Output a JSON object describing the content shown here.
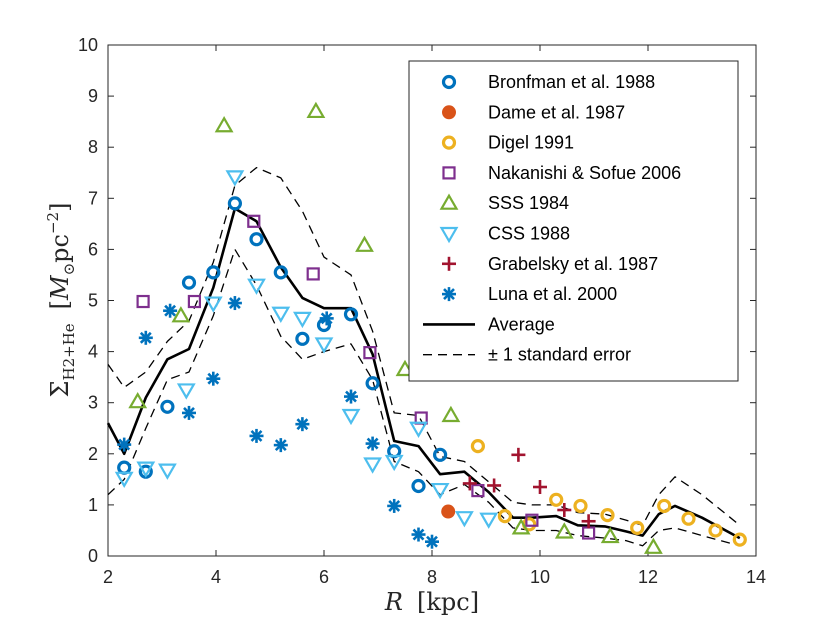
{
  "chart_data": {
    "type": "scatter",
    "title": "",
    "xlabel": "R",
    "xlabel_unit": "[kpc]",
    "ylabel_symbol": "Σ",
    "ylabel_subscript": "H2+He",
    "ylabel_unit_open": "[",
    "ylabel_unit_M": "M",
    "ylabel_unit_sun": "⊙",
    "ylabel_unit_pc": "pc",
    "ylabel_unit_exp": "−2",
    "ylabel_unit_close": "]",
    "xlim": [
      2,
      14
    ],
    "ylim": [
      0,
      10
    ],
    "xticks": [
      "2",
      "4",
      "6",
      "8",
      "10",
      "12",
      "14"
    ],
    "yticks": [
      "0",
      "1",
      "2",
      "3",
      "4",
      "5",
      "6",
      "7",
      "8",
      "9",
      "10"
    ],
    "legend_position": "top-right",
    "series": [
      {
        "name": "Bronfman et al. 1988",
        "marker": "circle",
        "color": "#0072BD",
        "x": [
          2.3,
          2.7,
          3.1,
          3.5,
          3.95,
          4.35,
          4.75,
          5.2,
          5.6,
          6.0,
          6.5,
          6.9,
          7.3,
          7.75,
          8.15
        ],
        "y": [
          1.73,
          1.65,
          2.92,
          5.35,
          5.55,
          6.9,
          6.2,
          5.55,
          4.25,
          4.52,
          4.73,
          3.38,
          2.05,
          1.37,
          1.98
        ]
      },
      {
        "name": "Dame et al. 1987",
        "marker": "filled-circle",
        "color": "#D95319",
        "x": [
          8.3
        ],
        "y": [
          0.87
        ]
      },
      {
        "name": "Digel 1991",
        "marker": "circle",
        "color": "#EDB120",
        "x": [
          8.85,
          9.35,
          9.8,
          10.3,
          10.75,
          11.25,
          11.8,
          12.3,
          12.75,
          13.25,
          13.7
        ],
        "y": [
          2.15,
          0.78,
          0.62,
          1.1,
          0.98,
          0.8,
          0.55,
          0.98,
          0.73,
          0.5,
          0.32
        ]
      },
      {
        "name": "Nakanishi & Sofue 2006",
        "marker": "square",
        "color": "#7E2F8E",
        "x": [
          2.65,
          3.6,
          4.7,
          5.8,
          6.85,
          7.8,
          8.85,
          9.85,
          10.9
        ],
        "y": [
          4.98,
          4.98,
          6.55,
          5.52,
          3.98,
          2.7,
          1.28,
          0.7,
          0.45
        ]
      },
      {
        "name": "SSS 1984",
        "marker": "triangle-up",
        "color": "#77AC30",
        "x": [
          2.55,
          3.35,
          4.15,
          5.85,
          6.75,
          7.5,
          8.35,
          9.65,
          10.45,
          11.3,
          12.1
        ],
        "y": [
          3.02,
          4.7,
          8.42,
          8.7,
          6.08,
          3.65,
          2.75,
          0.55,
          0.47,
          0.38,
          0.17
        ]
      },
      {
        "name": "CSS 1988",
        "marker": "triangle-down",
        "color": "#4DBEEE",
        "x": [
          2.3,
          2.7,
          3.1,
          3.45,
          3.95,
          4.35,
          4.75,
          5.2,
          5.6,
          6.0,
          6.5,
          6.9,
          7.3,
          7.75,
          8.15,
          8.6,
          9.05
        ],
        "y": [
          1.52,
          1.72,
          1.68,
          3.25,
          4.95,
          7.42,
          5.3,
          4.75,
          4.65,
          4.15,
          2.75,
          1.8,
          1.85,
          2.5,
          1.3,
          0.75,
          0.72
        ]
      },
      {
        "name": "Grabelsky et al. 1987",
        "marker": "plus",
        "color": "#A2142F",
        "x": [
          8.7,
          9.15,
          9.6,
          10.0,
          10.45,
          10.9
        ],
        "y": [
          1.42,
          1.38,
          1.98,
          1.35,
          0.9,
          0.68
        ]
      },
      {
        "name": "Luna et al. 2000",
        "marker": "asterisk",
        "color": "#0072BD",
        "x": [
          2.3,
          2.7,
          3.15,
          3.5,
          3.95,
          4.35,
          4.75,
          5.2,
          5.6,
          6.05,
          6.5,
          6.9,
          7.3,
          7.75,
          8.0
        ],
        "y": [
          2.18,
          4.27,
          4.8,
          2.8,
          3.47,
          4.95,
          2.35,
          2.17,
          2.58,
          4.65,
          3.12,
          2.2,
          0.98,
          0.42,
          0.28
        ]
      }
    ],
    "lines": [
      {
        "name": "Average",
        "style": "solid",
        "color": "#000000",
        "x": [
          2.0,
          2.3,
          2.7,
          3.1,
          3.5,
          3.95,
          4.35,
          4.75,
          5.2,
          5.6,
          6.0,
          6.5,
          6.9,
          7.3,
          7.75,
          8.15,
          8.6,
          9.05,
          9.5,
          9.85,
          10.3,
          10.7,
          11.2,
          11.6,
          11.9,
          12.2,
          12.5,
          13.0,
          13.7
        ],
        "y": [
          2.6,
          2.0,
          3.1,
          3.85,
          4.05,
          5.25,
          6.8,
          6.55,
          5.65,
          5.05,
          4.85,
          4.85,
          3.95,
          2.25,
          2.15,
          1.6,
          1.65,
          1.25,
          0.75,
          0.75,
          0.78,
          0.6,
          0.58,
          0.48,
          0.4,
          0.82,
          0.98,
          0.75,
          0.35
        ]
      },
      {
        "name": "± 1 standard error",
        "style": "dashed",
        "color": "#000000",
        "x": [
          2.0,
          2.3,
          2.7,
          3.1,
          3.5,
          3.95,
          4.35,
          4.75,
          5.2,
          5.6,
          6.0,
          6.5,
          6.9,
          7.3,
          7.75,
          8.15,
          8.6,
          9.05,
          9.5,
          9.85,
          10.3,
          10.7,
          11.2,
          11.6,
          11.9,
          12.2,
          12.5,
          13.0,
          13.7
        ],
        "y": [
          3.75,
          3.3,
          3.6,
          4.2,
          4.6,
          5.75,
          7.25,
          7.6,
          7.4,
          6.75,
          5.85,
          5.5,
          4.4,
          2.8,
          2.75,
          1.95,
          1.85,
          1.45,
          1.05,
          1.0,
          1.0,
          0.85,
          0.82,
          0.7,
          0.6,
          1.2,
          1.55,
          1.2,
          0.6
        ]
      },
      {
        "name": "± 1 standard error lower",
        "style": "dashed",
        "color": "#000000",
        "x": [
          2.0,
          2.3,
          2.7,
          3.1,
          3.5,
          3.95,
          4.35,
          4.75,
          5.2,
          5.6,
          6.0,
          6.5,
          6.9,
          7.3,
          7.75,
          8.15,
          8.6,
          9.05,
          9.5,
          9.85,
          10.3,
          10.7,
          11.2,
          11.6,
          11.9,
          12.2,
          12.5,
          13.0,
          13.7
        ],
        "y": [
          1.2,
          1.5,
          2.5,
          3.45,
          3.6,
          4.7,
          6.0,
          5.3,
          4.3,
          3.85,
          4.0,
          4.15,
          3.45,
          1.85,
          1.65,
          1.2,
          1.4,
          1.05,
          0.55,
          0.5,
          0.5,
          0.4,
          0.35,
          0.3,
          0.2,
          0.5,
          0.55,
          0.4,
          0.2
        ]
      }
    ],
    "legend": [
      {
        "label": "Bronfman et al. 1988",
        "marker": "circle",
        "color": "#0072BD"
      },
      {
        "label": "Dame et al. 1987",
        "marker": "filled-circle",
        "color": "#D95319"
      },
      {
        "label": "Digel 1991",
        "marker": "circle",
        "color": "#EDB120"
      },
      {
        "label": "Nakanishi & Sofue 2006",
        "marker": "square",
        "color": "#7E2F8E"
      },
      {
        "label": "SSS 1984",
        "marker": "triangle-up",
        "color": "#77AC30"
      },
      {
        "label": "CSS 1988",
        "marker": "triangle-down",
        "color": "#4DBEEE"
      },
      {
        "label": "Grabelsky et al. 1987",
        "marker": "plus",
        "color": "#A2142F"
      },
      {
        "label": "Luna et al. 2000",
        "marker": "asterisk",
        "color": "#0072BD"
      },
      {
        "label": "Average",
        "marker": "line-solid",
        "color": "#000000"
      },
      {
        "label": "± 1 standard error",
        "marker": "line-dashed",
        "color": "#000000"
      }
    ]
  }
}
